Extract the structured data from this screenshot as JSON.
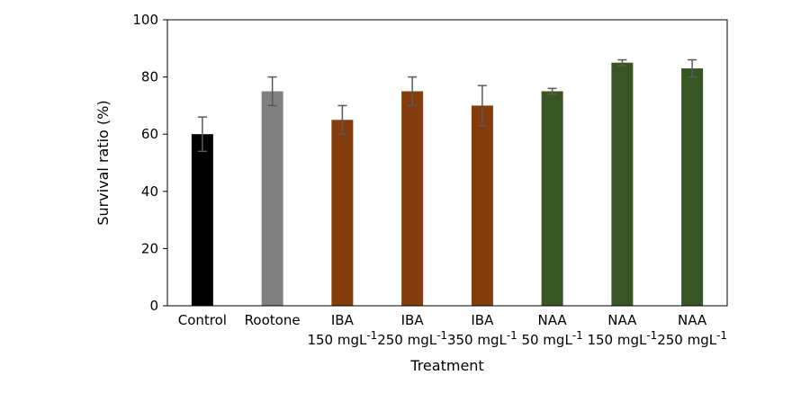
{
  "chart_data": {
    "type": "bar",
    "xlabel": "Treatment",
    "ylabel": "Survival ratio  (%)",
    "ylim": [
      0,
      100
    ],
    "yticks": [
      0,
      20,
      40,
      60,
      80,
      100
    ],
    "grid": false,
    "legend": "none",
    "categories": [
      {
        "line1": "Control",
        "line2": "",
        "sup": ""
      },
      {
        "line1": "Rootone",
        "line2": "",
        "sup": ""
      },
      {
        "line1": "IBA",
        "line2": "150 mgL",
        "sup": "-1"
      },
      {
        "line1": "IBA",
        "line2": "250 mgL",
        "sup": "-1"
      },
      {
        "line1": "IBA",
        "line2": "350 mgL",
        "sup": "-1"
      },
      {
        "line1": "NAA",
        "line2": "50 mgL",
        "sup": "-1"
      },
      {
        "line1": "NAA",
        "line2": "150 mgL",
        "sup": "-1"
      },
      {
        "line1": "NAA",
        "line2": "250 mgL",
        "sup": "-1"
      }
    ],
    "values": [
      60,
      75,
      65,
      75,
      70,
      75,
      85,
      83
    ],
    "errors": [
      6,
      5,
      5,
      5,
      7,
      1,
      1,
      3
    ],
    "colors": [
      "#000000",
      "#808080",
      "#843c0c",
      "#843c0c",
      "#843c0c",
      "#375623",
      "#375623",
      "#375623"
    ],
    "error_bar_color": "#595959"
  }
}
